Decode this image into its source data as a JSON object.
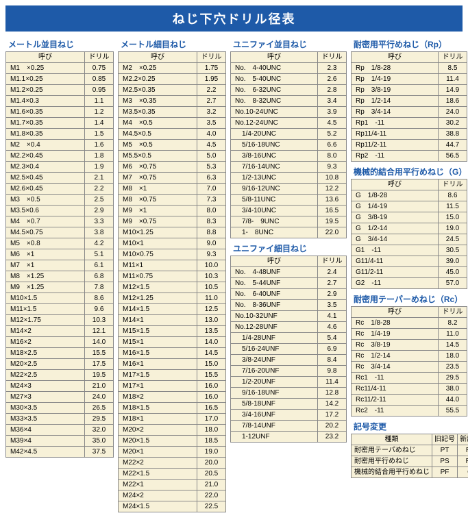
{
  "title": "ねじ下穴ドリル径表",
  "headers": {
    "name": "呼び",
    "drill": "ドリル"
  },
  "symHeaders": {
    "kind": "種類",
    "old": "旧記号",
    "new": "新記号"
  },
  "sections": {
    "metric_coarse": {
      "title": "メートル並目ねじ",
      "rows": [
        [
          "M1　×0.25",
          "0.75"
        ],
        [
          "M1.1×0.25",
          "0.85"
        ],
        [
          "M1.2×0.25",
          "0.95"
        ],
        [
          "M1.4×0.3",
          "1.1"
        ],
        [
          "M1.6×0.35",
          "1.2"
        ],
        [
          "M1.7×0.35",
          "1.4"
        ],
        [
          "M1.8×0.35",
          "1.5"
        ],
        [
          "M2　×0.4",
          "1.6"
        ],
        [
          "M2.2×0.45",
          "1.8"
        ],
        [
          "M2.3×0.4",
          "1.9"
        ],
        [
          "M2.5×0.45",
          "2.1"
        ],
        [
          "M2.6×0.45",
          "2.2"
        ],
        [
          "M3　×0.5",
          "2.5"
        ],
        [
          "M3.5×0.6",
          "2.9"
        ],
        [
          "M4　×0.7",
          "3.3"
        ],
        [
          "M4.5×0.75",
          "3.8"
        ],
        [
          "M5　×0.8",
          "4.2"
        ],
        [
          "M6　×1",
          "5.1"
        ],
        [
          "M7　×1",
          "6.1"
        ],
        [
          "M8　×1.25",
          "6.8"
        ],
        [
          "M9　×1.25",
          "7.8"
        ],
        [
          "M10×1.5",
          "8.6"
        ],
        [
          "M11×1.5",
          "9.6"
        ],
        [
          "M12×1.75",
          "10.3"
        ],
        [
          "M14×2",
          "12.1"
        ],
        [
          "M16×2",
          "14.0"
        ],
        [
          "M18×2.5",
          "15.5"
        ],
        [
          "M20×2.5",
          "17.5"
        ],
        [
          "M22×2.5",
          "19.5"
        ],
        [
          "M24×3",
          "21.0"
        ],
        [
          "M27×3",
          "24.0"
        ],
        [
          "M30×3.5",
          "26.5"
        ],
        [
          "M33×3.5",
          "29.5"
        ],
        [
          "M36×4",
          "32.0"
        ],
        [
          "M39×4",
          "35.0"
        ],
        [
          "M42×4.5",
          "37.5"
        ]
      ]
    },
    "metric_fine": {
      "title": "メートル細目ねじ",
      "rows": [
        [
          "M2　×0.25",
          "1.75"
        ],
        [
          "M2.2×0.25",
          "1.95"
        ],
        [
          "M2.5×0.35",
          "2.2"
        ],
        [
          "M3　×0.35",
          "2.7"
        ],
        [
          "M3.5×0.35",
          "3.2"
        ],
        [
          "M4　×0.5",
          "3.5"
        ],
        [
          "M4.5×0.5",
          "4.0"
        ],
        [
          "M5　×0.5",
          "4.5"
        ],
        [
          "M5.5×0.5",
          "5.0"
        ],
        [
          "M6　×0.75",
          "5.3"
        ],
        [
          "M7　×0.75",
          "6.3"
        ],
        [
          "M8　×1",
          "7.0"
        ],
        [
          "M8　×0.75",
          "7.3"
        ],
        [
          "M9　×1",
          "8.0"
        ],
        [
          "M9　×0.75",
          "8.3"
        ],
        [
          "M10×1.25",
          "8.8"
        ],
        [
          "M10×1",
          "9.0"
        ],
        [
          "M10×0.75",
          "9.3"
        ],
        [
          "M11×1",
          "10.0"
        ],
        [
          "M11×0.75",
          "10.3"
        ],
        [
          "M12×1.5",
          "10.5"
        ],
        [
          "M12×1.25",
          "11.0"
        ],
        [
          "M14×1.5",
          "12.5"
        ],
        [
          "M14×1",
          "13.0"
        ],
        [
          "M15×1.5",
          "13.5"
        ],
        [
          "M15×1",
          "14.0"
        ],
        [
          "M16×1.5",
          "14.5"
        ],
        [
          "M16×1",
          "15.0"
        ],
        [
          "M17×1.5",
          "15.5"
        ],
        [
          "M17×1",
          "16.0"
        ],
        [
          "M18×2",
          "16.0"
        ],
        [
          "M18×1.5",
          "16.5"
        ],
        [
          "M18×1",
          "17.0"
        ],
        [
          "M20×2",
          "18.0"
        ],
        [
          "M20×1.5",
          "18.5"
        ],
        [
          "M20×1",
          "19.0"
        ],
        [
          "M22×2",
          "20.0"
        ],
        [
          "M22×1.5",
          "20.5"
        ],
        [
          "M22×1",
          "21.0"
        ],
        [
          "M24×2",
          "22.0"
        ],
        [
          "M24×1.5",
          "22.5"
        ]
      ]
    },
    "unc": {
      "title": "ユニファイ並目ねじ",
      "rows": [
        [
          "No.　4-40UNC",
          "2.3"
        ],
        [
          "No.　5-40UNC",
          "2.6"
        ],
        [
          "No.　6-32UNC",
          "2.8"
        ],
        [
          "No.　8-32UNC",
          "3.4"
        ],
        [
          "No.10-24UNC",
          "3.9"
        ],
        [
          "No.12-24UNC",
          "4.5"
        ],
        [
          "　1/4-20UNC",
          "5.2"
        ],
        [
          "　5/16-18UNC",
          "6.6"
        ],
        [
          "　3/8-16UNC",
          "8.0"
        ],
        [
          "　7/16-14UNC",
          "9.3"
        ],
        [
          "　1/2-13UNC",
          "10.8"
        ],
        [
          "　9/16-12UNC",
          "12.2"
        ],
        [
          "　5/8-11UNC",
          "13.6"
        ],
        [
          "　3/4-10UNC",
          "16.5"
        ],
        [
          "　7/8-　9UNC",
          "19.5"
        ],
        [
          "　1-　8UNC",
          "22.0"
        ]
      ]
    },
    "unf": {
      "title": "ユニファイ細目ねじ",
      "rows": [
        [
          "No.　4-48UNF",
          "2.4"
        ],
        [
          "No.　5-44UNF",
          "2.7"
        ],
        [
          "No.　6-40UNF",
          "2.9"
        ],
        [
          "No.　8-36UNF",
          "3.5"
        ],
        [
          "No.10-32UNF",
          "4.1"
        ],
        [
          "No.12-28UNF",
          "4.6"
        ],
        [
          "　1/4-28UNF",
          "5.4"
        ],
        [
          "　5/16-24UNF",
          "6.9"
        ],
        [
          "　3/8-24UNF",
          "8.4"
        ],
        [
          "　7/16-20UNF",
          "9.8"
        ],
        [
          "　1/2-20UNF",
          "11.4"
        ],
        [
          "　9/16-18UNF",
          "12.8"
        ],
        [
          "　5/8-18UNF",
          "14.2"
        ],
        [
          "　3/4-16UNF",
          "17.2"
        ],
        [
          "　7/8-14UNF",
          "20.2"
        ],
        [
          "　1-12UNF",
          "23.2"
        ]
      ]
    },
    "rp": {
      "title": "耐密用平行めねじ（Rp）",
      "rows": [
        [
          "Rp　1/8-28",
          "8.5"
        ],
        [
          "Rp　1/4-19",
          "11.4"
        ],
        [
          "Rp　3/8-19",
          "14.9"
        ],
        [
          "Rp　1/2-14",
          "18.6"
        ],
        [
          "Rp　3/4-14",
          "24.0"
        ],
        [
          "Rp1　-11",
          "30.2"
        ],
        [
          "Rp11/4-11",
          "38.8"
        ],
        [
          "Rp11/2-11",
          "44.7"
        ],
        [
          "Rp2　-11",
          "56.5"
        ]
      ]
    },
    "g": {
      "title": "機械的結合用平行めねじ（G）",
      "rows": [
        [
          "G　1/8-28",
          "8.6"
        ],
        [
          "G　1/4-19",
          "11.5"
        ],
        [
          "G　3/8-19",
          "15.0"
        ],
        [
          "G　1/2-14",
          "19.0"
        ],
        [
          "G　3/4-14",
          "24.5"
        ],
        [
          "G1　-11",
          "30.5"
        ],
        [
          "G11/4-11",
          "39.0"
        ],
        [
          "G11/2-11",
          "45.0"
        ],
        [
          "G2　-11",
          "57.0"
        ]
      ]
    },
    "rc": {
      "title": "耐密用テーパーめねじ（Rc）",
      "rows": [
        [
          "Rc　1/8-28",
          "8.2"
        ],
        [
          "Rc　1/4-19",
          "11.0"
        ],
        [
          "Rc　3/8-19",
          "14.5"
        ],
        [
          "Rc　1/2-14",
          "18.0"
        ],
        [
          "Rc　3/4-14",
          "23.5"
        ],
        [
          "Rc1　-11",
          "29.5"
        ],
        [
          "Rc11/4-11",
          "38.0"
        ],
        [
          "Rc11/2-11",
          "44.0"
        ],
        [
          "Rc2　-11",
          "55.5"
        ]
      ]
    },
    "symchange": {
      "title": "記号変更",
      "rows": [
        [
          "耐密用テーパめねじ",
          "PT",
          "Rc"
        ],
        [
          "耐密用平行めねじ",
          "PS",
          "Rp"
        ],
        [
          "機械的結合用平行めねじ",
          "PF",
          "G"
        ]
      ]
    }
  }
}
